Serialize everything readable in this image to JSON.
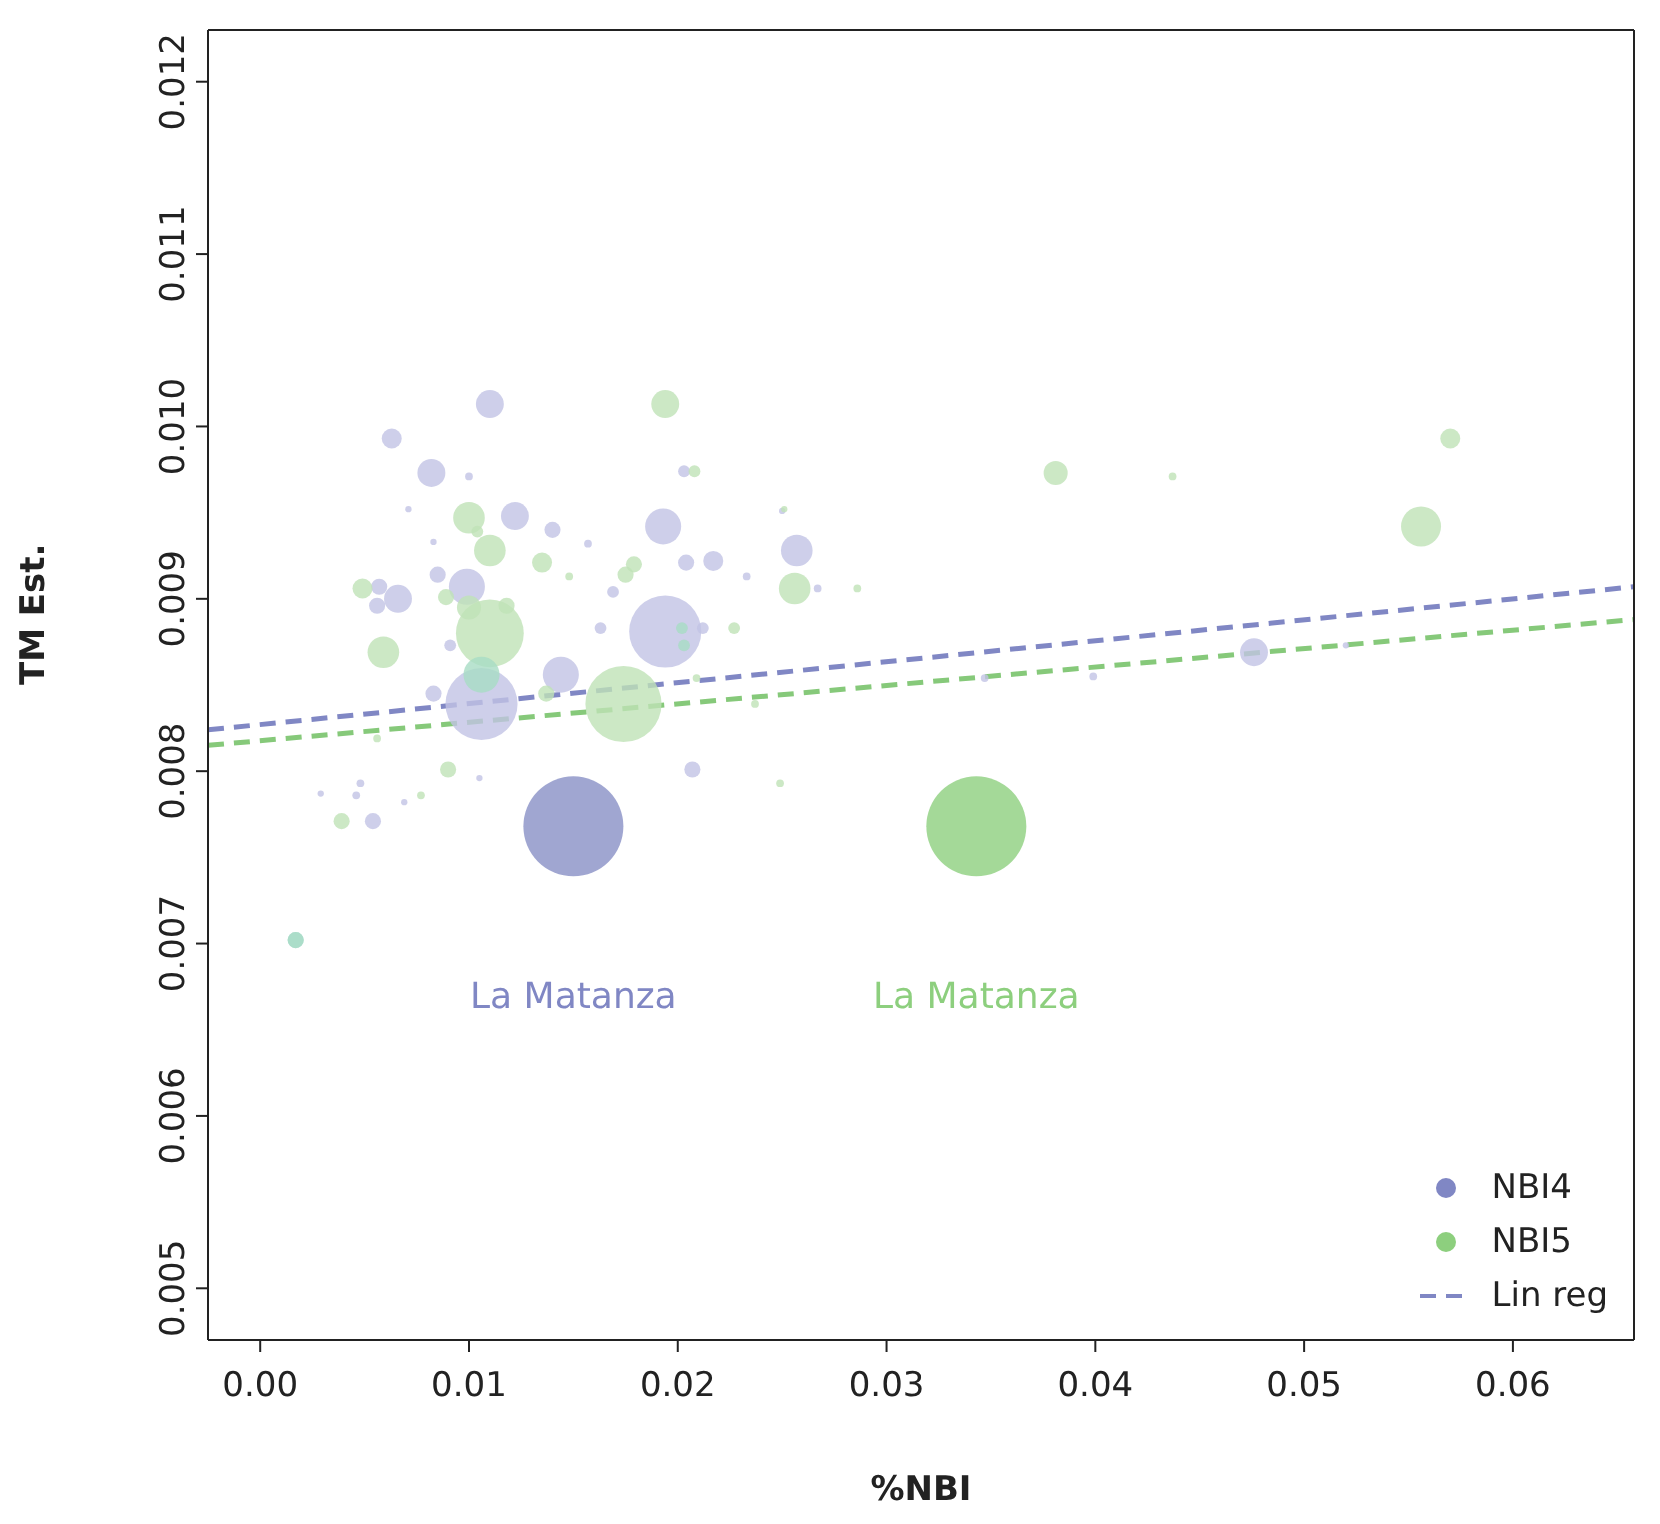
{
  "chart_data": {
    "type": "bubble",
    "xlabel": "%NBI",
    "ylabel": "TM Est.",
    "xlim": [
      -0.0025,
      0.0658
    ],
    "ylim": [
      0.0047,
      0.0123
    ],
    "xticks": [
      {
        "value": 0,
        "label": "0.00"
      },
      {
        "value": 0.01,
        "label": "0.01"
      },
      {
        "value": 0.02,
        "label": "0.02"
      },
      {
        "value": 0.03,
        "label": "0.03"
      },
      {
        "value": 0.04,
        "label": "0.04"
      },
      {
        "value": 0.05,
        "label": "0.05"
      },
      {
        "value": 0.06,
        "label": "0.06"
      }
    ],
    "yticks": [
      {
        "value": 0.005,
        "label": "0.005"
      },
      {
        "value": 0.006,
        "label": "0.006"
      },
      {
        "value": 0.007,
        "label": "0.007"
      },
      {
        "value": 0.008,
        "label": "0.008"
      },
      {
        "value": 0.009,
        "label": "0.009"
      },
      {
        "value": 0.01,
        "label": "0.010"
      },
      {
        "value": 0.011,
        "label": "0.011"
      },
      {
        "value": 0.012,
        "label": "0.012"
      }
    ],
    "legend": "bottom right",
    "grid": false,
    "marker": "circle",
    "annotations": [
      "La Matanza",
      "La Matanza"
    ],
    "series": [
      {
        "name": "NBI4",
        "color": "#8087c4",
        "x": [
          0.011,
          0.0063,
          0.0082,
          0.0122,
          0.014,
          0.0193,
          0.0257,
          0.0217,
          0.0204,
          0.0085,
          0.0099,
          0.0066,
          0.0056,
          0.0057,
          0.0106,
          0.0194,
          0.0144,
          0.0083,
          0.0091,
          0.0169,
          0.0233,
          0.0267,
          0.0163,
          0.0212,
          0.0207,
          0.0157,
          0.0203,
          0.01,
          0.0071,
          0.0083,
          0.0048,
          0.0046,
          0.0029,
          0.0054,
          0.0069,
          0.0105,
          0.015,
          0.0476,
          0.0399,
          0.0347,
          0.052,
          0.025,
          0.0017
        ],
        "values": [
          0.01013,
          0.00993,
          0.00973,
          0.00948,
          0.0094,
          0.00942,
          0.00928,
          0.00922,
          0.00921,
          0.00914,
          0.00907,
          0.009,
          0.00896,
          0.00907,
          0.00839,
          0.00881,
          0.00856,
          0.00845,
          0.00873,
          0.00904,
          0.00913,
          0.00906,
          0.00883,
          0.00883,
          0.00801,
          0.00932,
          0.00974,
          0.00971,
          0.00952,
          0.00933,
          0.00793,
          0.00786,
          0.00787,
          0.00771,
          0.00782,
          0.00796,
          0.00768,
          0.00869,
          0.00855,
          0.00854,
          0.00873,
          0.00951,
          0.00702
        ],
        "sizes": [
          0.078,
          0.04,
          0.078,
          0.078,
          0.026,
          0.13,
          0.1,
          0.04,
          0.026,
          0.026,
          0.13,
          0.078,
          0.026,
          0.026,
          0.52,
          0.52,
          0.13,
          0.026,
          0.014,
          0.014,
          0.006,
          0.006,
          0.014,
          0.014,
          0.026,
          0.006,
          0.014,
          0.006,
          0.004,
          0.004,
          0.006,
          0.006,
          0.004,
          0.026,
          0.004,
          0.004,
          1,
          0.078,
          0.006,
          0.006,
          0.004,
          0.004,
          0.026
        ],
        "colors": [
          "#c2c3e5",
          "#c2c3e5",
          "#c2c3e5",
          "#c2c3e5",
          "#c2c3e5",
          "#c2c3e5",
          "#c2c3e5",
          "#c2c3e5",
          "#c2c3e5",
          "#c2c3e5",
          "#c2c3e5",
          "#c2c3e5",
          "#c2c3e5",
          "#c2c3e5",
          "#c2c3e5",
          "#c2c3e5",
          "#c2c3e5",
          "#c2c3e5",
          "#c2c3e5",
          "#c2c3e5",
          "#c2c3e5",
          "#c2c3e5",
          "#c2c3e5",
          "#c2c3e5",
          "#c2c3e5",
          "#c2c3e5",
          "#c2c3e5",
          "#c2c3e5",
          "#c2c3e5",
          "#c2c3e5",
          "#c2c3e5",
          "#c2c3e5",
          "#c2c3e5",
          "#c2c3e5",
          "#c2c3e5",
          "#c2c3e5",
          "#8890c6",
          "#c2c3e5",
          "#c2c3e5",
          "#c2c3e5",
          "#c2c3e5",
          "#c2c3e5",
          "#a8d8d0"
        ]
      },
      {
        "name": "NBI5",
        "color": "#8dcf7e",
        "x": [
          0.0194,
          0.01,
          0.011,
          0.0104,
          0.0135,
          0.0049,
          0.011,
          0.0059,
          0.0089,
          0.01,
          0.0118,
          0.0106,
          0.0137,
          0.0174,
          0.0179,
          0.0175,
          0.0148,
          0.0208,
          0.0227,
          0.0256,
          0.0286,
          0.0251,
          0.0209,
          0.0237,
          0.0249,
          0.0202,
          0.0203,
          0.009,
          0.0039,
          0.0077,
          0.0056,
          0.0343,
          0.0381,
          0.0437,
          0.0556,
          0.057,
          0.0017
        ],
        "values": [
          0.01013,
          0.00947,
          0.00928,
          0.00939,
          0.00921,
          0.00906,
          0.0088,
          0.00869,
          0.00901,
          0.00895,
          0.00896,
          0.00856,
          0.00845,
          0.00839,
          0.0092,
          0.00914,
          0.00913,
          0.00974,
          0.00883,
          0.00906,
          0.00906,
          0.00952,
          0.00854,
          0.00839,
          0.00793,
          0.00883,
          0.00873,
          0.00801,
          0.00771,
          0.00786,
          0.00819,
          0.00768,
          0.00973,
          0.00971,
          0.00942,
          0.00993,
          0.00702
        ],
        "sizes": [
          0.078,
          0.1,
          0.1,
          0.014,
          0.04,
          0.04,
          0.46,
          0.1,
          0.026,
          0.058,
          0.026,
          0.13,
          0.026,
          0.58,
          0.026,
          0.026,
          0.006,
          0.014,
          0.014,
          0.1,
          0.006,
          0.004,
          0.006,
          0.006,
          0.006,
          0.014,
          0.014,
          0.026,
          0.026,
          0.006,
          0.006,
          1,
          0.058,
          0.006,
          0.16,
          0.04,
          0.026
        ],
        "colors": [
          "#bfe2b6",
          "#bfe2b6",
          "#bfe2b6",
          "#bfe2b6",
          "#bfe2b6",
          "#bfe2b6",
          "#bfe2b6",
          "#bfe2b6",
          "#bfe2b6",
          "#bfe2b6",
          "#bfe2b6",
          "#a8dcc4",
          "#bfe2b6",
          "#bfe2b6",
          "#bfe2b6",
          "#bfe2b6",
          "#bfe2b6",
          "#bfe2b6",
          "#bfe2b6",
          "#bfe2b6",
          "#bfe2b6",
          "#bfe2b6",
          "#bfe2b6",
          "#bfe2b6",
          "#bfe2b6",
          "#a8dcc4",
          "#a8dcc4",
          "#bfe2b6",
          "#bfe2b6",
          "#bfe2b6",
          "#bfe2b6",
          "#8dcf7e",
          "#bfe2b6",
          "#bfe2b6",
          "#bfe2b6",
          "#bfe2b6",
          "#a8dcc4"
        ]
      },
      {
        "name": "Lin reg",
        "type": "line",
        "color": "#8087c4",
        "line_style": "dashed",
        "marker": "none",
        "x": [
          -0.0025,
          0.0658
        ],
        "values": [
          0.00824,
          0.00907
        ]
      },
      {
        "type": "line",
        "color": "#86c97a",
        "line_style": "dashed",
        "marker": "none",
        "x": [
          -0.0025,
          0.0658
        ],
        "values": [
          0.00815,
          0.00888
        ]
      }
    ]
  }
}
